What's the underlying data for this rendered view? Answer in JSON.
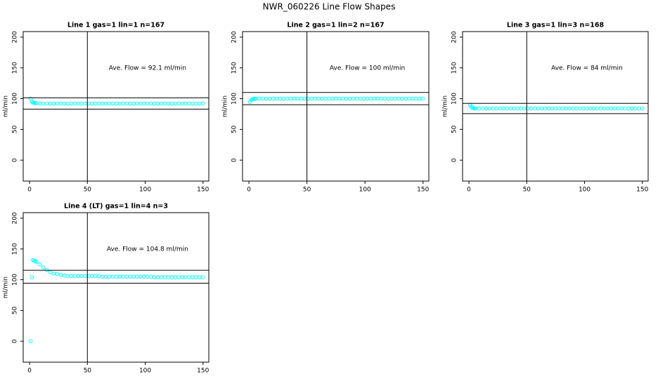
{
  "title": "NWR_060226  Line Flow Shapes",
  "chart_data": [
    {
      "type": "scatter",
      "title": "Line 1 gas=1 lin=1 n=167",
      "annotation": "Ave. Flow =  92.1  ml/min",
      "ylabel": "ml/min",
      "color": "#00ffff",
      "xlim": [
        -5.5,
        155
      ],
      "ylim": [
        -34,
        209
      ],
      "xticks": [
        0,
        50,
        100,
        150
      ],
      "yticks": [
        0,
        50,
        100,
        150,
        200
      ],
      "vlines": [
        50
      ],
      "hlines": [
        101.3,
        82.9
      ],
      "x": [
        1,
        2,
        3,
        4,
        5,
        6,
        9,
        12,
        15,
        18,
        21,
        24,
        27,
        30,
        33,
        36,
        39,
        42,
        45,
        48,
        51,
        54,
        57,
        60,
        63,
        66,
        69,
        72,
        75,
        78,
        81,
        84,
        87,
        90,
        93,
        96,
        99,
        102,
        105,
        108,
        111,
        114,
        117,
        120,
        123,
        126,
        129,
        132,
        135,
        138,
        141,
        144,
        147,
        150
      ],
      "values": [
        100,
        95,
        94,
        93,
        93,
        92.5,
        92,
        92,
        92,
        92,
        92,
        92,
        92,
        92,
        92,
        92,
        92,
        92,
        92,
        92,
        92,
        92,
        92,
        92,
        92,
        92,
        92,
        92,
        92,
        92,
        92,
        92,
        92,
        92,
        92,
        92,
        92,
        92,
        92,
        92,
        92,
        92,
        92,
        92,
        92,
        92,
        92,
        92,
        92,
        92,
        92,
        92,
        92,
        92
      ]
    },
    {
      "type": "scatter",
      "title": "Line 2 gas=1 lin=2 n=167",
      "annotation": "Ave. Flow =  100  ml/min",
      "ylabel": "ml/min",
      "color": "#00ffff",
      "xlim": [
        -5.5,
        155
      ],
      "ylim": [
        -34,
        209
      ],
      "xticks": [
        0,
        50,
        100,
        150
      ],
      "yticks": [
        0,
        50,
        100,
        150,
        200
      ],
      "vlines": [
        50
      ],
      "hlines": [
        110,
        90
      ],
      "x": [
        1,
        2,
        3,
        4,
        5,
        6,
        9,
        12,
        15,
        18,
        21,
        24,
        27,
        30,
        33,
        36,
        39,
        42,
        45,
        48,
        51,
        54,
        57,
        60,
        63,
        66,
        69,
        72,
        75,
        78,
        81,
        84,
        87,
        90,
        93,
        96,
        99,
        102,
        105,
        108,
        111,
        114,
        117,
        120,
        123,
        126,
        129,
        132,
        135,
        138,
        141,
        144,
        147,
        150
      ],
      "values": [
        95,
        98,
        99,
        99.5,
        100,
        100,
        100,
        100,
        100,
        100,
        100,
        100,
        100,
        100,
        100,
        100,
        100,
        100,
        100,
        100,
        100,
        100,
        100,
        100,
        100,
        100,
        100,
        100,
        100,
        100,
        100,
        100,
        100,
        100,
        100,
        100,
        100,
        100,
        100,
        100,
        100,
        100,
        100,
        100,
        100,
        100,
        100,
        100,
        100,
        100,
        100,
        100,
        100,
        100
      ]
    },
    {
      "type": "scatter",
      "title": "Line 3 gas=1 lin=3 n=168",
      "annotation": "Ave. Flow =  84  ml/min",
      "ylabel": "ml/min",
      "color": "#00ffff",
      "xlim": [
        -5.5,
        155
      ],
      "ylim": [
        -34,
        209
      ],
      "xticks": [
        0,
        50,
        100,
        150
      ],
      "yticks": [
        0,
        50,
        100,
        150,
        200
      ],
      "vlines": [
        50
      ],
      "hlines": [
        92.4,
        75.6
      ],
      "x": [
        1,
        2,
        3,
        4,
        5,
        6,
        9,
        12,
        15,
        18,
        21,
        24,
        27,
        30,
        33,
        36,
        39,
        42,
        45,
        48,
        51,
        54,
        57,
        60,
        63,
        66,
        69,
        72,
        75,
        78,
        81,
        84,
        87,
        90,
        93,
        96,
        99,
        102,
        105,
        108,
        111,
        114,
        117,
        120,
        123,
        126,
        129,
        132,
        135,
        138,
        141,
        144,
        147,
        150
      ],
      "values": [
        90,
        87,
        85,
        84.5,
        84,
        84,
        84,
        84,
        84,
        84,
        84,
        84,
        84,
        84,
        84,
        84,
        84,
        84,
        84,
        84,
        84,
        84,
        84,
        84,
        84,
        84,
        84,
        84,
        84,
        84,
        84,
        84,
        84,
        84,
        84,
        84,
        84,
        84,
        84,
        84,
        84,
        84,
        84,
        84,
        84,
        84,
        84,
        84,
        84,
        84,
        84,
        84,
        84,
        84
      ]
    },
    {
      "type": "scatter",
      "title": "Line 4 (LT) gas=1 lin=4 n=3",
      "annotation": "Ave. Flow =  104.8  ml/min",
      "ylabel": "ml/min",
      "color": "#00ffff",
      "xlim": [
        -5.5,
        155
      ],
      "ylim": [
        -34,
        209
      ],
      "xticks": [
        0,
        50,
        100,
        150
      ],
      "yticks": [
        0,
        50,
        100,
        150,
        200
      ],
      "vlines": [
        50
      ],
      "hlines": [
        115.3,
        94.3
      ],
      "x": [
        1,
        2,
        3,
        4,
        5,
        6,
        9,
        12,
        15,
        18,
        21,
        24,
        27,
        30,
        33,
        36,
        39,
        42,
        45,
        48,
        51,
        54,
        57,
        60,
        63,
        66,
        69,
        72,
        75,
        78,
        81,
        84,
        87,
        90,
        93,
        96,
        99,
        102,
        105,
        108,
        111,
        114,
        117,
        120,
        123,
        126,
        129,
        132,
        135,
        138,
        141,
        144,
        147,
        150
      ],
      "values": [
        0,
        104,
        132,
        131,
        130,
        129,
        125,
        120,
        116,
        112,
        110,
        109,
        108,
        107,
        106,
        106,
        106,
        106,
        106,
        106,
        106,
        106,
        106,
        106,
        105,
        105,
        105,
        105,
        105,
        105,
        105,
        105,
        105,
        105,
        105,
        105,
        105,
        105,
        105,
        104,
        104,
        104,
        104,
        104,
        104,
        104,
        104,
        104,
        104,
        104,
        104,
        104,
        104,
        104
      ]
    }
  ]
}
